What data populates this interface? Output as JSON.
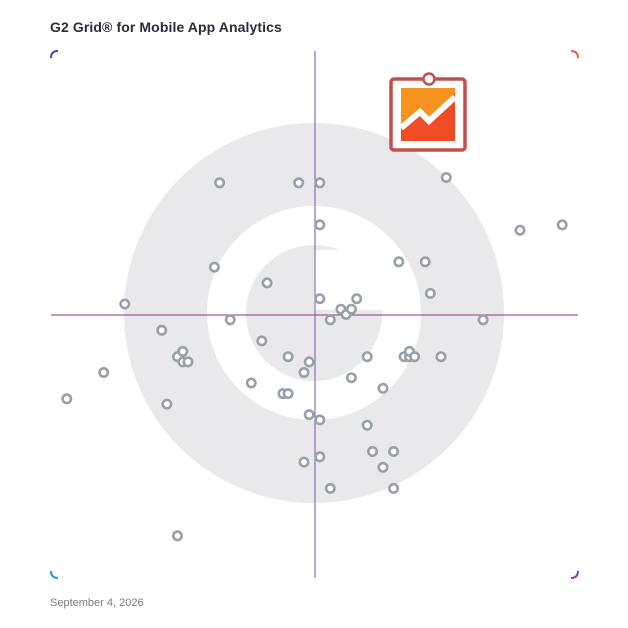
{
  "title": "G2 Grid® for Mobile App Analytics",
  "date": "September 4, 2026",
  "colors": {
    "frame_top_left": "#5b3fa8",
    "frame_top_right": "#ef5b3a",
    "frame_bottom_left": "#1f9ad6",
    "frame_bottom_right": "#8e3bb0",
    "watermark": "#e9e9eb",
    "point_stroke": "#9aa0aa",
    "highlight_frame": "#c0504d",
    "highlight_orange": "#f6921e",
    "highlight_red": "#ef4b25"
  },
  "chart_data": {
    "type": "scatter",
    "xlim": [
      0,
      100
    ],
    "ylim": [
      0,
      100
    ],
    "grid": false,
    "points": [
      {
        "x": 3,
        "y": 34
      },
      {
        "x": 10,
        "y": 39
      },
      {
        "x": 14,
        "y": 52
      },
      {
        "x": 21,
        "y": 47
      },
      {
        "x": 22,
        "y": 33
      },
      {
        "x": 24,
        "y": 8
      },
      {
        "x": 24,
        "y": 42
      },
      {
        "x": 25,
        "y": 41
      },
      {
        "x": 25,
        "y": 43
      },
      {
        "x": 26,
        "y": 41
      },
      {
        "x": 31,
        "y": 59
      },
      {
        "x": 32,
        "y": 75
      },
      {
        "x": 34,
        "y": 49
      },
      {
        "x": 38,
        "y": 37
      },
      {
        "x": 40,
        "y": 45
      },
      {
        "x": 41,
        "y": 56
      },
      {
        "x": 44,
        "y": 35
      },
      {
        "x": 45,
        "y": 35
      },
      {
        "x": 45,
        "y": 42
      },
      {
        "x": 47,
        "y": 75
      },
      {
        "x": 48,
        "y": 39
      },
      {
        "x": 48,
        "y": 22
      },
      {
        "x": 49,
        "y": 31
      },
      {
        "x": 49,
        "y": 41
      },
      {
        "x": 51,
        "y": 23
      },
      {
        "x": 51,
        "y": 30
      },
      {
        "x": 51,
        "y": 53
      },
      {
        "x": 51,
        "y": 67
      },
      {
        "x": 51,
        "y": 75
      },
      {
        "x": 53,
        "y": 49
      },
      {
        "x": 53,
        "y": 17
      },
      {
        "x": 55,
        "y": 51
      },
      {
        "x": 56,
        "y": 50
      },
      {
        "x": 57,
        "y": 51
      },
      {
        "x": 57,
        "y": 38
      },
      {
        "x": 58,
        "y": 53
      },
      {
        "x": 60,
        "y": 42
      },
      {
        "x": 60,
        "y": 29
      },
      {
        "x": 61,
        "y": 24
      },
      {
        "x": 63,
        "y": 36
      },
      {
        "x": 63,
        "y": 21
      },
      {
        "x": 65,
        "y": 24
      },
      {
        "x": 65,
        "y": 17
      },
      {
        "x": 66,
        "y": 60
      },
      {
        "x": 67,
        "y": 42
      },
      {
        "x": 68,
        "y": 42
      },
      {
        "x": 68,
        "y": 43
      },
      {
        "x": 69,
        "y": 42
      },
      {
        "x": 71,
        "y": 60
      },
      {
        "x": 72,
        "y": 54
      },
      {
        "x": 74,
        "y": 42
      },
      {
        "x": 75,
        "y": 76
      },
      {
        "x": 82,
        "y": 49
      },
      {
        "x": 89,
        "y": 66
      },
      {
        "x": 97,
        "y": 67
      }
    ],
    "highlight": {
      "x": 71,
      "y": 88
    }
  }
}
